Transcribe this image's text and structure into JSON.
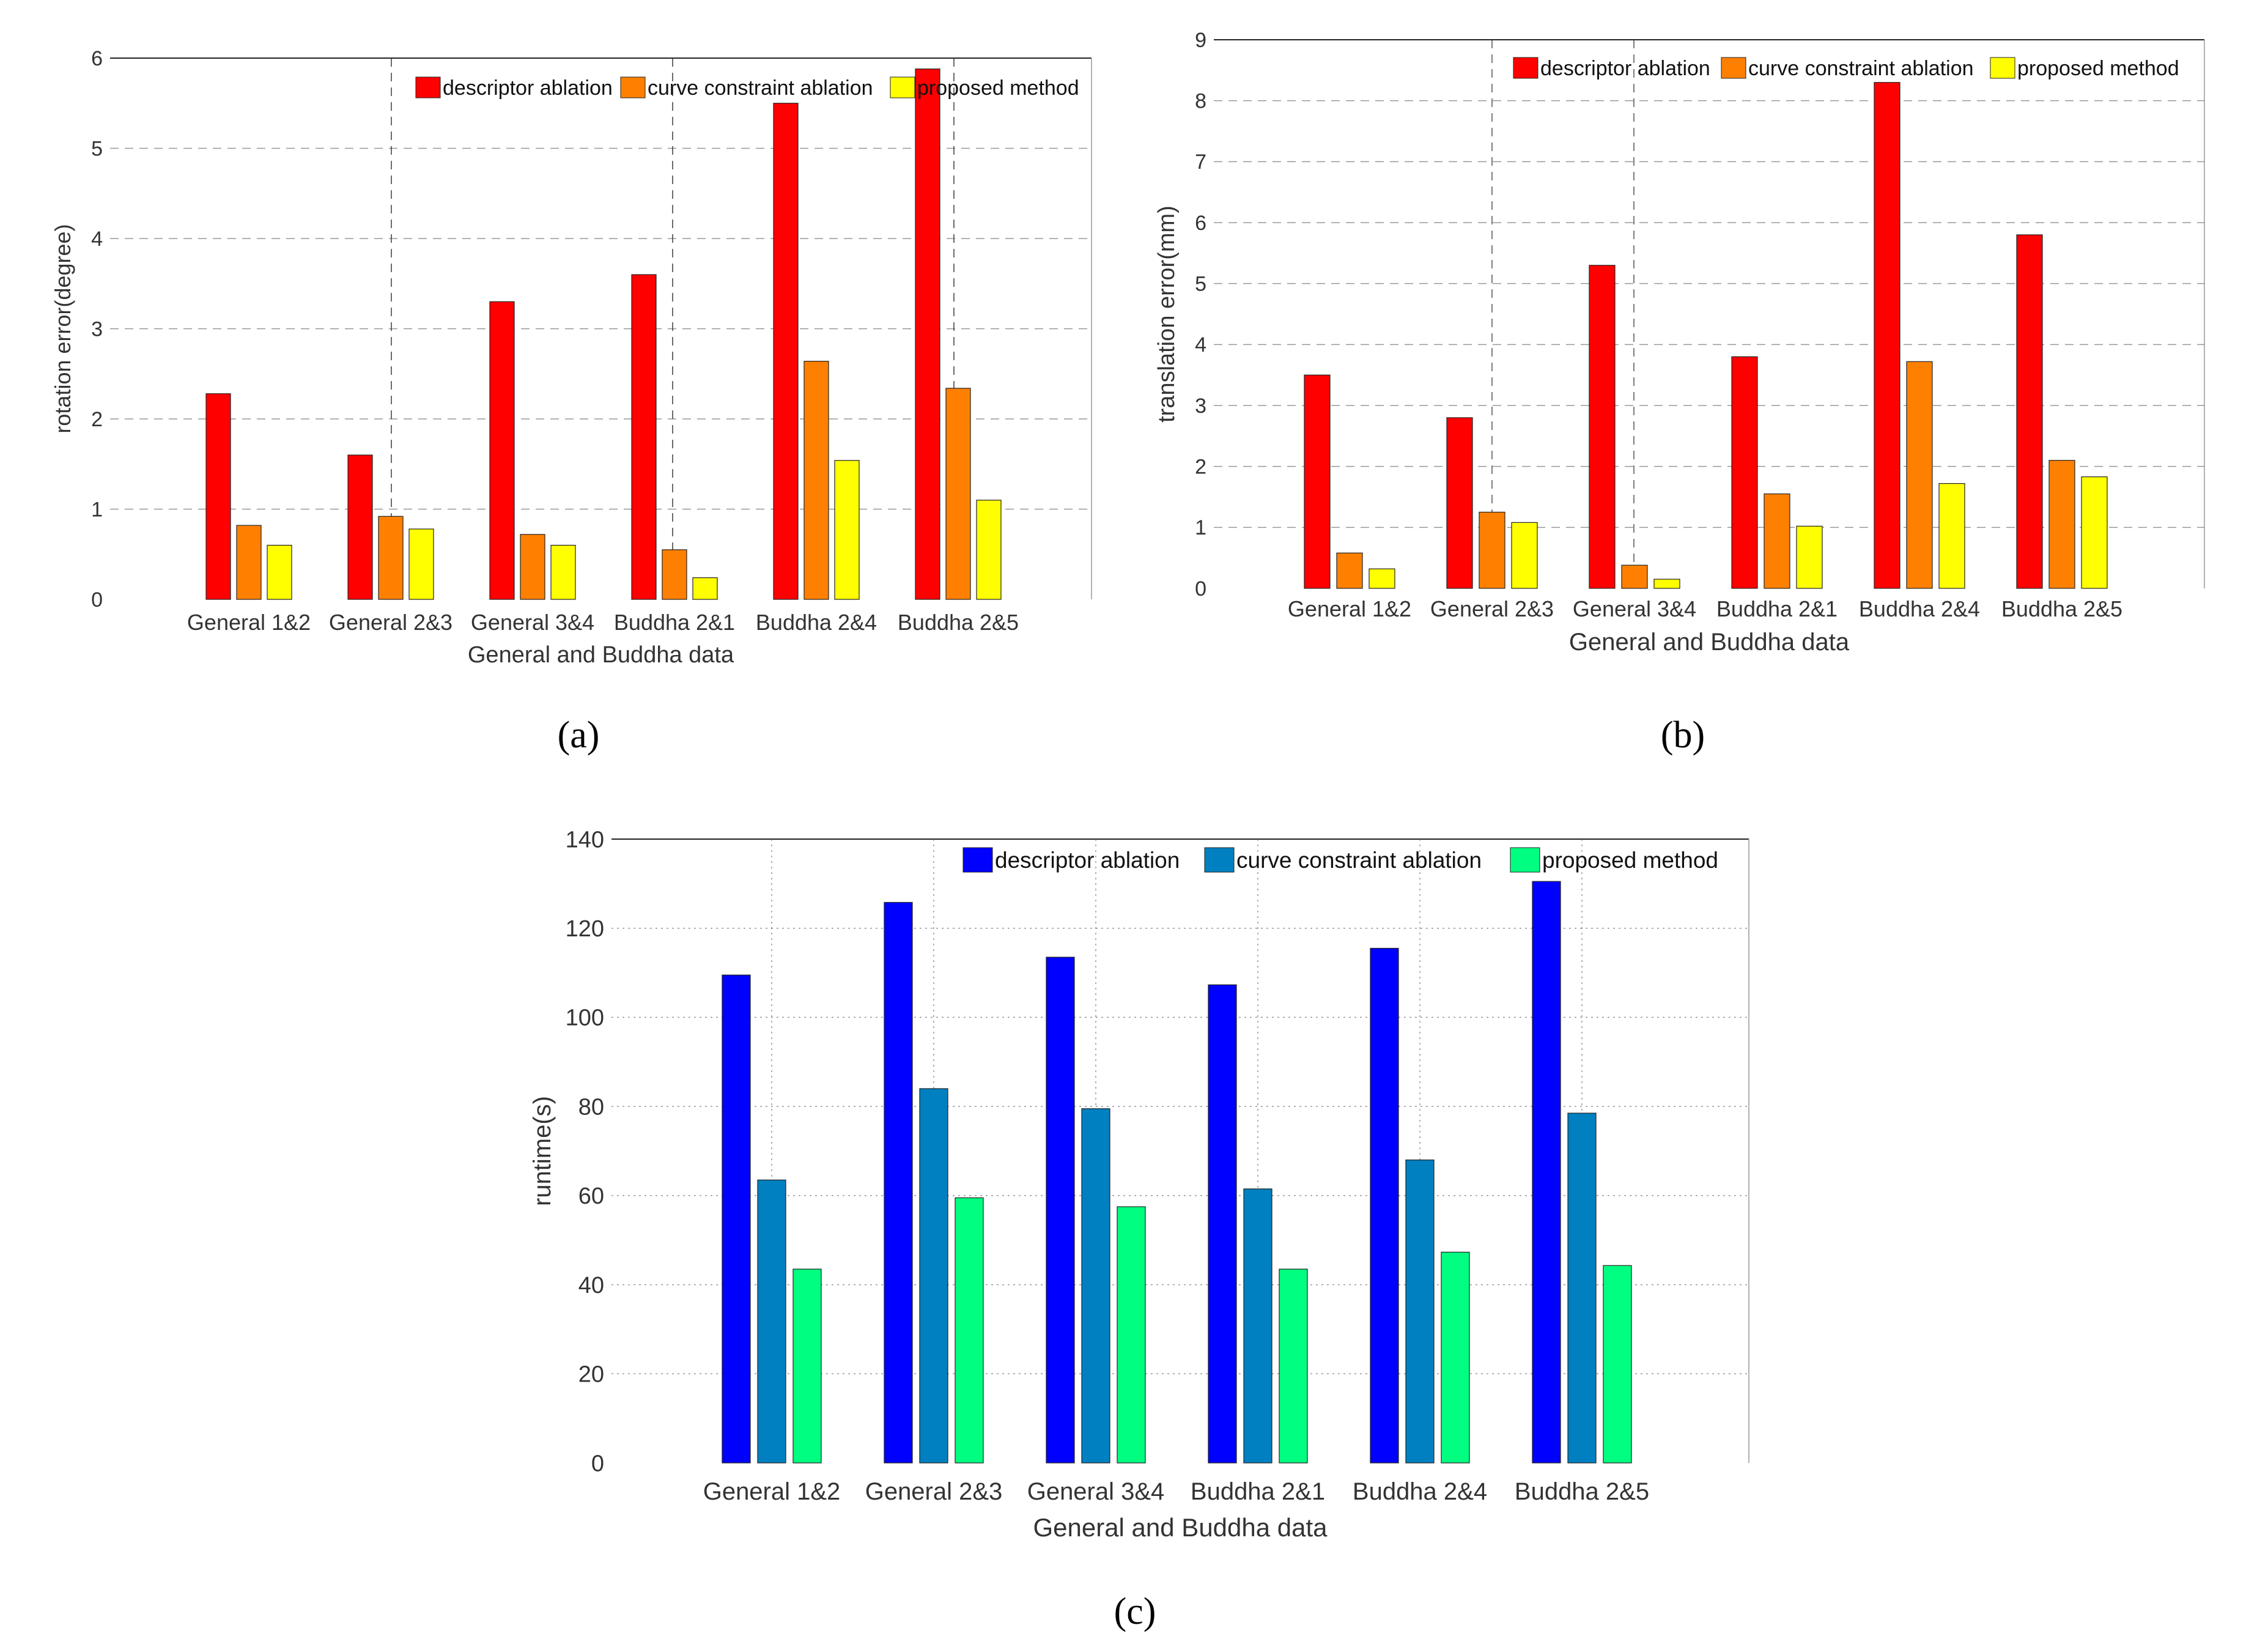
{
  "chart_data": [
    {
      "id": "a",
      "type": "bar",
      "caption": "(a)",
      "ylabel": "rotation error(degree)",
      "xlabel": "General and Buddha data",
      "ylim": [
        0,
        6
      ],
      "yticks": [
        "0",
        "1",
        "2",
        "3",
        "4",
        "5",
        "6"
      ],
      "categories": [
        "General 1&2",
        "General 2&3",
        "General 3&4",
        "Buddha 2&1",
        "Buddha 2&4",
        "Buddha 2&5"
      ],
      "series": [
        {
          "name": "descriptor ablation",
          "color": "#ff0000",
          "values": [
            2.28,
            1.6,
            3.3,
            3.6,
            5.5,
            5.88
          ]
        },
        {
          "name": "curve constraint ablation",
          "color": "#ff8000",
          "values": [
            0.82,
            0.92,
            0.72,
            0.55,
            2.64,
            2.34
          ]
        },
        {
          "name": "proposed method",
          "color": "#ffff00",
          "values": [
            0.6,
            0.78,
            0.6,
            0.24,
            1.54,
            1.1
          ]
        }
      ],
      "legend": "top"
    },
    {
      "id": "b",
      "type": "bar",
      "caption": "(b)",
      "ylabel": "translation error(mm)",
      "xlabel": "General and Buddha data",
      "ylim": [
        0,
        9
      ],
      "yticks": [
        "0",
        "1",
        "2",
        "3",
        "4",
        "5",
        "6",
        "7",
        "8",
        "9"
      ],
      "categories": [
        "General 1&2",
        "General 2&3",
        "General 3&4",
        "Buddha 2&1",
        "Buddha 2&4",
        "Buddha 2&5"
      ],
      "series": [
        {
          "name": "descriptor ablation",
          "color": "#ff0000",
          "values": [
            3.5,
            2.8,
            5.3,
            3.8,
            8.3,
            5.8
          ]
        },
        {
          "name": "curve constraint ablation",
          "color": "#ff8000",
          "values": [
            0.58,
            1.25,
            0.38,
            1.55,
            3.72,
            2.1
          ]
        },
        {
          "name": "proposed method",
          "color": "#ffff00",
          "values": [
            0.32,
            1.08,
            0.15,
            1.02,
            1.72,
            1.83
          ]
        }
      ],
      "legend": "top"
    },
    {
      "id": "c",
      "type": "bar",
      "caption": "(c)",
      "ylabel": "runtime(s)",
      "xlabel": "General and Buddha data",
      "ylim": [
        0,
        140
      ],
      "yticks": [
        "0",
        "20",
        "40",
        "60",
        "80",
        "100",
        "120",
        "140"
      ],
      "categories": [
        "General 1&2",
        "General 2&3",
        "General 3&4",
        "Buddha 2&1",
        "Buddha 2&4",
        "Buddha 2&5"
      ],
      "series": [
        {
          "name": "descriptor ablation",
          "color": "#0000ff",
          "values": [
            109.5,
            125.8,
            113.5,
            107.3,
            115.5,
            130.5
          ]
        },
        {
          "name": "curve constraint ablation",
          "color": "#0080c0",
          "values": [
            63.5,
            84.0,
            79.5,
            61.5,
            68.0,
            78.5
          ]
        },
        {
          "name": "proposed method",
          "color": "#00ff80",
          "values": [
            43.5,
            59.5,
            57.5,
            43.5,
            47.3,
            44.3
          ]
        }
      ],
      "legend": "top"
    }
  ]
}
